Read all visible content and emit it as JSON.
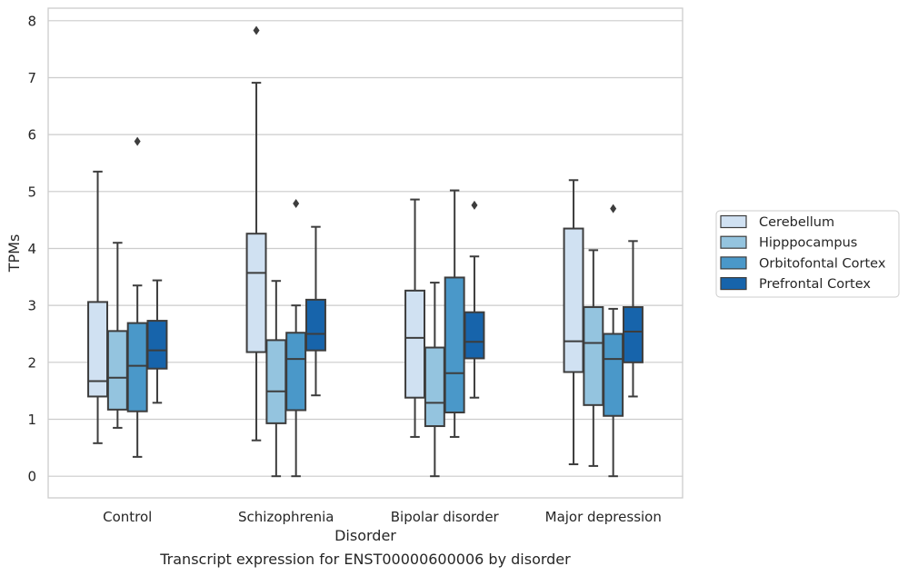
{
  "chart_data": {
    "type": "box",
    "title": "Transcript expression for ENST00000600006 by disorder",
    "xlabel": "Disorder",
    "ylabel": "TPMs",
    "ylim": [
      -0.38,
      8.22
    ],
    "yticks": [
      0,
      1,
      2,
      3,
      4,
      5,
      6,
      7,
      8
    ],
    "grid": true,
    "legend_position": "right",
    "categories": [
      "Control",
      "Schizophrenia",
      "Bipolar disorder",
      "Major depression"
    ],
    "series": [
      {
        "name": "Cerebellum",
        "color": "#d0e1f2",
        "boxes": [
          {
            "whisker_low": 0.58,
            "q1": 1.4,
            "median": 1.67,
            "q3": 3.06,
            "whisker_high": 5.35,
            "outliers": []
          },
          {
            "whisker_low": 0.63,
            "q1": 2.18,
            "median": 3.57,
            "q3": 4.26,
            "whisker_high": 6.91,
            "outliers": [
              7.83
            ]
          },
          {
            "whisker_low": 0.69,
            "q1": 1.38,
            "median": 2.43,
            "q3": 3.26,
            "whisker_high": 4.86,
            "outliers": []
          },
          {
            "whisker_low": 0.21,
            "q1": 1.83,
            "median": 2.37,
            "q3": 4.35,
            "whisker_high": 5.2,
            "outliers": []
          }
        ]
      },
      {
        "name": "Hipppocampus",
        "color": "#94c4df",
        "boxes": [
          {
            "whisker_low": 0.85,
            "q1": 1.17,
            "median": 1.73,
            "q3": 2.55,
            "whisker_high": 4.1,
            "outliers": []
          },
          {
            "whisker_low": 0.0,
            "q1": 0.93,
            "median": 1.49,
            "q3": 2.39,
            "whisker_high": 3.43,
            "outliers": []
          },
          {
            "whisker_low": 0.0,
            "q1": 0.88,
            "median": 1.29,
            "q3": 2.26,
            "whisker_high": 3.4,
            "outliers": []
          },
          {
            "whisker_low": 0.18,
            "q1": 1.25,
            "median": 2.34,
            "q3": 2.97,
            "whisker_high": 3.97,
            "outliers": []
          }
        ]
      },
      {
        "name": "Orbitofontal Cortex",
        "color": "#4a98c9",
        "boxes": [
          {
            "whisker_low": 0.34,
            "q1": 1.14,
            "median": 1.94,
            "q3": 2.69,
            "whisker_high": 3.35,
            "outliers": [
              5.88
            ]
          },
          {
            "whisker_low": 0.0,
            "q1": 1.16,
            "median": 2.06,
            "q3": 2.52,
            "whisker_high": 3.0,
            "outliers": [
              4.79
            ]
          },
          {
            "whisker_low": 0.69,
            "q1": 1.12,
            "median": 1.81,
            "q3": 3.49,
            "whisker_high": 5.02,
            "outliers": []
          },
          {
            "whisker_low": 0.0,
            "q1": 1.06,
            "median": 2.06,
            "q3": 2.5,
            "whisker_high": 2.94,
            "outliers": [
              4.7
            ]
          }
        ]
      },
      {
        "name": "Prefrontal Cortex",
        "color": "#1764ab",
        "boxes": [
          {
            "whisker_low": 1.29,
            "q1": 1.89,
            "median": 2.21,
            "q3": 2.73,
            "whisker_high": 3.44,
            "outliers": []
          },
          {
            "whisker_low": 1.42,
            "q1": 2.21,
            "median": 2.5,
            "q3": 3.1,
            "whisker_high": 4.38,
            "outliers": []
          },
          {
            "whisker_low": 1.38,
            "q1": 2.07,
            "median": 2.36,
            "q3": 2.88,
            "whisker_high": 3.86,
            "outliers": [
              4.76
            ]
          },
          {
            "whisker_low": 1.4,
            "q1": 2.0,
            "median": 2.54,
            "q3": 2.97,
            "whisker_high": 4.13,
            "outliers": []
          }
        ]
      }
    ]
  }
}
